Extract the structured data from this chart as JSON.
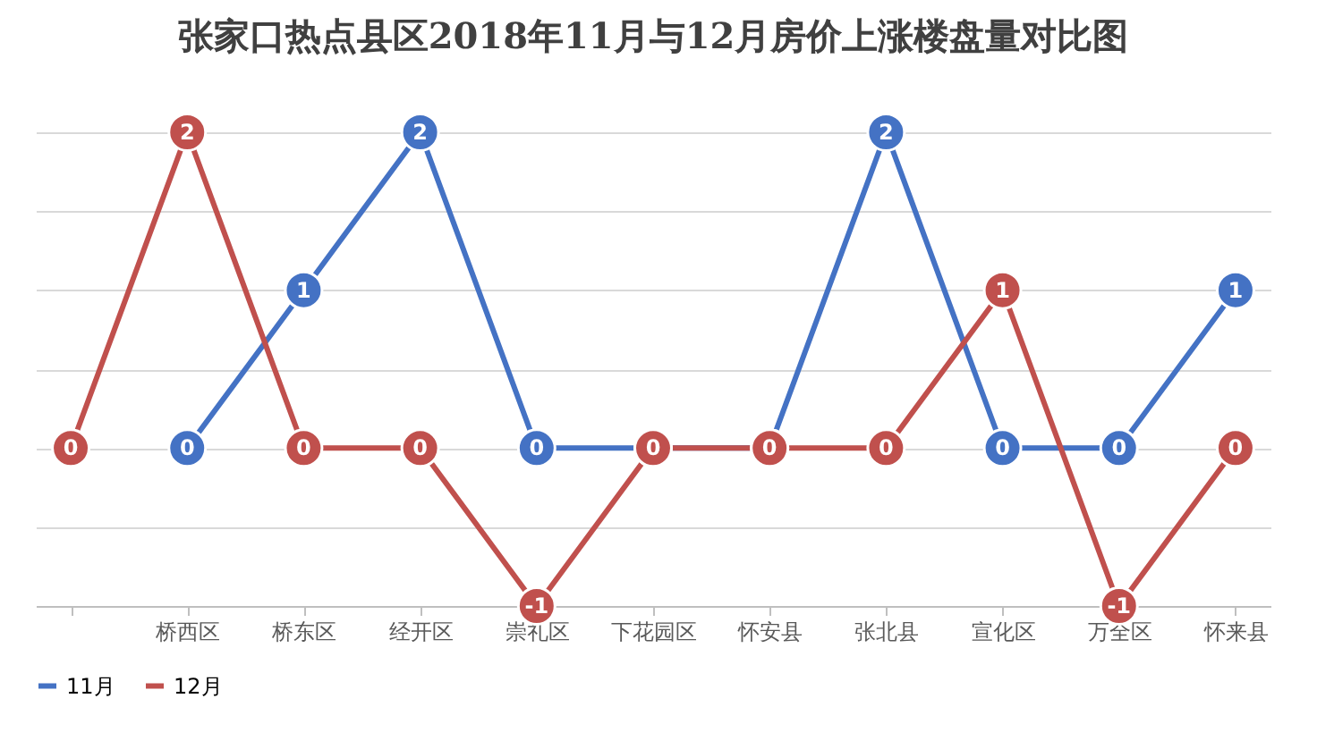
{
  "chart_data": {
    "type": "line",
    "title": "张家口热点县区2018年11月与12月房价上涨楼盘量对比图",
    "categories": [
      null,
      "桥西区",
      "桥东区",
      "经开区",
      "崇礼区",
      "下花园区",
      "怀安县",
      "张北县",
      "宣化区",
      "万全区",
      "怀来县"
    ],
    "series": [
      {
        "name": "11月",
        "color": "#4472c4",
        "values": [
          null,
          0,
          1,
          2,
          0,
          0,
          0,
          2,
          0,
          0,
          1
        ],
        "value_labels": [
          null,
          "0",
          "1",
          "2",
          "0",
          null,
          null,
          "2",
          "0",
          "0",
          "1"
        ]
      },
      {
        "name": "12月",
        "color": "#c0504d",
        "values": [
          0,
          2,
          0,
          0,
          -1,
          0,
          0,
          0,
          1,
          -1,
          0
        ],
        "value_labels": [
          "0",
          "2",
          "0",
          "0",
          "-1",
          "0",
          "0",
          "0",
          "1",
          "-1",
          "0"
        ]
      }
    ],
    "tick_labels": "x",
    "grid": "y",
    "legend": "bottom",
    "marker": "circle",
    "line_style": "solid"
  }
}
